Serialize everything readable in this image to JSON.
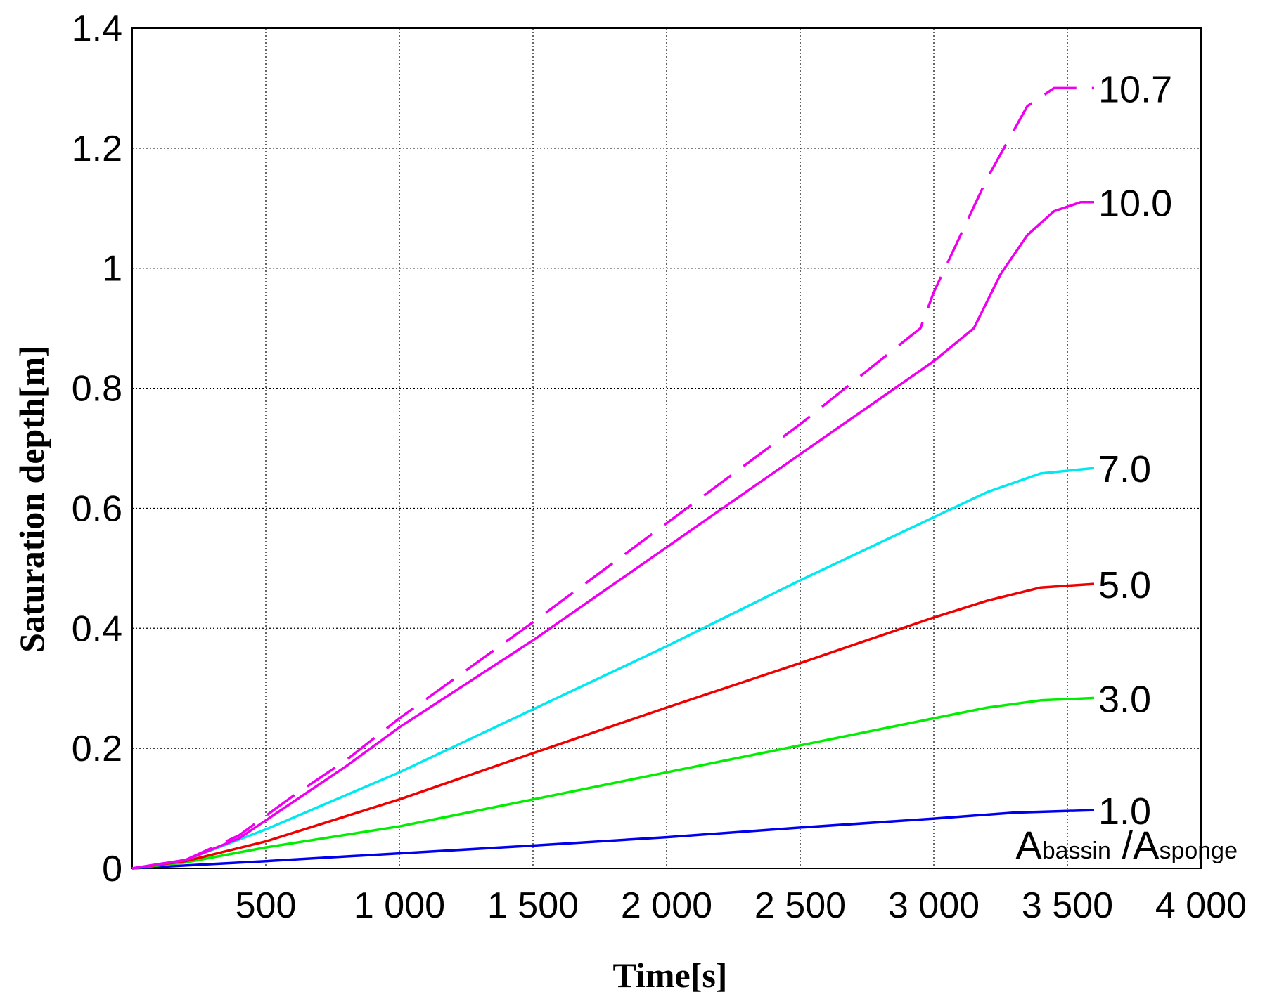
{
  "chart_data": {
    "type": "line",
    "title": "",
    "xlabel": "Time[s]",
    "ylabel": "Saturation depth[m]",
    "xlim": [
      0,
      4000
    ],
    "ylim": [
      0,
      1.4
    ],
    "xticks": [
      500,
      1000,
      1500,
      2000,
      2500,
      3000,
      3500,
      4000
    ],
    "xtick_labels": [
      "500",
      "1 000",
      "1 500",
      "2 000",
      "2 500",
      "3 000",
      "3 500",
      "4 000"
    ],
    "yticks": [
      0,
      0.2,
      0.4,
      0.6,
      0.8,
      1,
      1.2,
      1.4
    ],
    "ytick_labels": [
      "0",
      "0.2",
      "0.4",
      "0.6",
      "0.8",
      "1",
      "1.2",
      "1.4"
    ],
    "grid": true,
    "legend_title": {
      "main1": "A",
      "sub1": "bassin",
      "sep": " /",
      "main2": "A",
      "sub2": "sponge"
    },
    "series": [
      {
        "label": "1.0",
        "color": "#0000ee",
        "style": "solid",
        "x": [
          0,
          500,
          1000,
          1500,
          2000,
          2500,
          3000,
          3300,
          3600
        ],
        "y": [
          0,
          0.012,
          0.025,
          0.038,
          0.052,
          0.068,
          0.083,
          0.093,
          0.097
        ]
      },
      {
        "label": "3.0",
        "color": "#00ee00",
        "style": "solid",
        "x": [
          0,
          200,
          500,
          1000,
          1500,
          2000,
          2500,
          3000,
          3200,
          3400,
          3600
        ],
        "y": [
          0,
          0.01,
          0.035,
          0.07,
          0.115,
          0.16,
          0.205,
          0.25,
          0.268,
          0.28,
          0.284
        ]
      },
      {
        "label": "5.0",
        "color": "#ee0000",
        "style": "solid",
        "x": [
          0,
          200,
          500,
          1000,
          1500,
          2000,
          2500,
          3000,
          3200,
          3400,
          3600
        ],
        "y": [
          0,
          0.012,
          0.045,
          0.115,
          0.192,
          0.268,
          0.342,
          0.418,
          0.446,
          0.468,
          0.474
        ]
      },
      {
        "label": "7.0",
        "color": "#00e8f0",
        "style": "solid",
        "x": [
          0,
          200,
          500,
          1000,
          1500,
          2000,
          2500,
          3000,
          3200,
          3400,
          3600
        ],
        "y": [
          0,
          0.014,
          0.065,
          0.16,
          0.265,
          0.37,
          0.48,
          0.585,
          0.627,
          0.658,
          0.667
        ]
      },
      {
        "label": "10.0",
        "color": "#ee00ee",
        "style": "solid",
        "x": [
          0,
          200,
          400,
          600,
          800,
          1000,
          1500,
          2000,
          2500,
          3000,
          3150,
          3250,
          3350,
          3450,
          3550,
          3600
        ],
        "y": [
          0,
          0.014,
          0.05,
          0.11,
          0.17,
          0.235,
          0.38,
          0.535,
          0.69,
          0.845,
          0.9,
          0.99,
          1.055,
          1.095,
          1.11,
          1.11
        ]
      },
      {
        "label": "10.7",
        "color": "#ee00ee",
        "style": "dashed",
        "x": [
          0,
          200,
          400,
          600,
          800,
          1000,
          1500,
          2000,
          2500,
          2950,
          3000,
          3200,
          3350,
          3450,
          3600
        ],
        "y": [
          0,
          0.014,
          0.055,
          0.12,
          0.18,
          0.25,
          0.41,
          0.575,
          0.74,
          0.9,
          0.96,
          1.15,
          1.27,
          1.3,
          1.3
        ]
      }
    ]
  }
}
